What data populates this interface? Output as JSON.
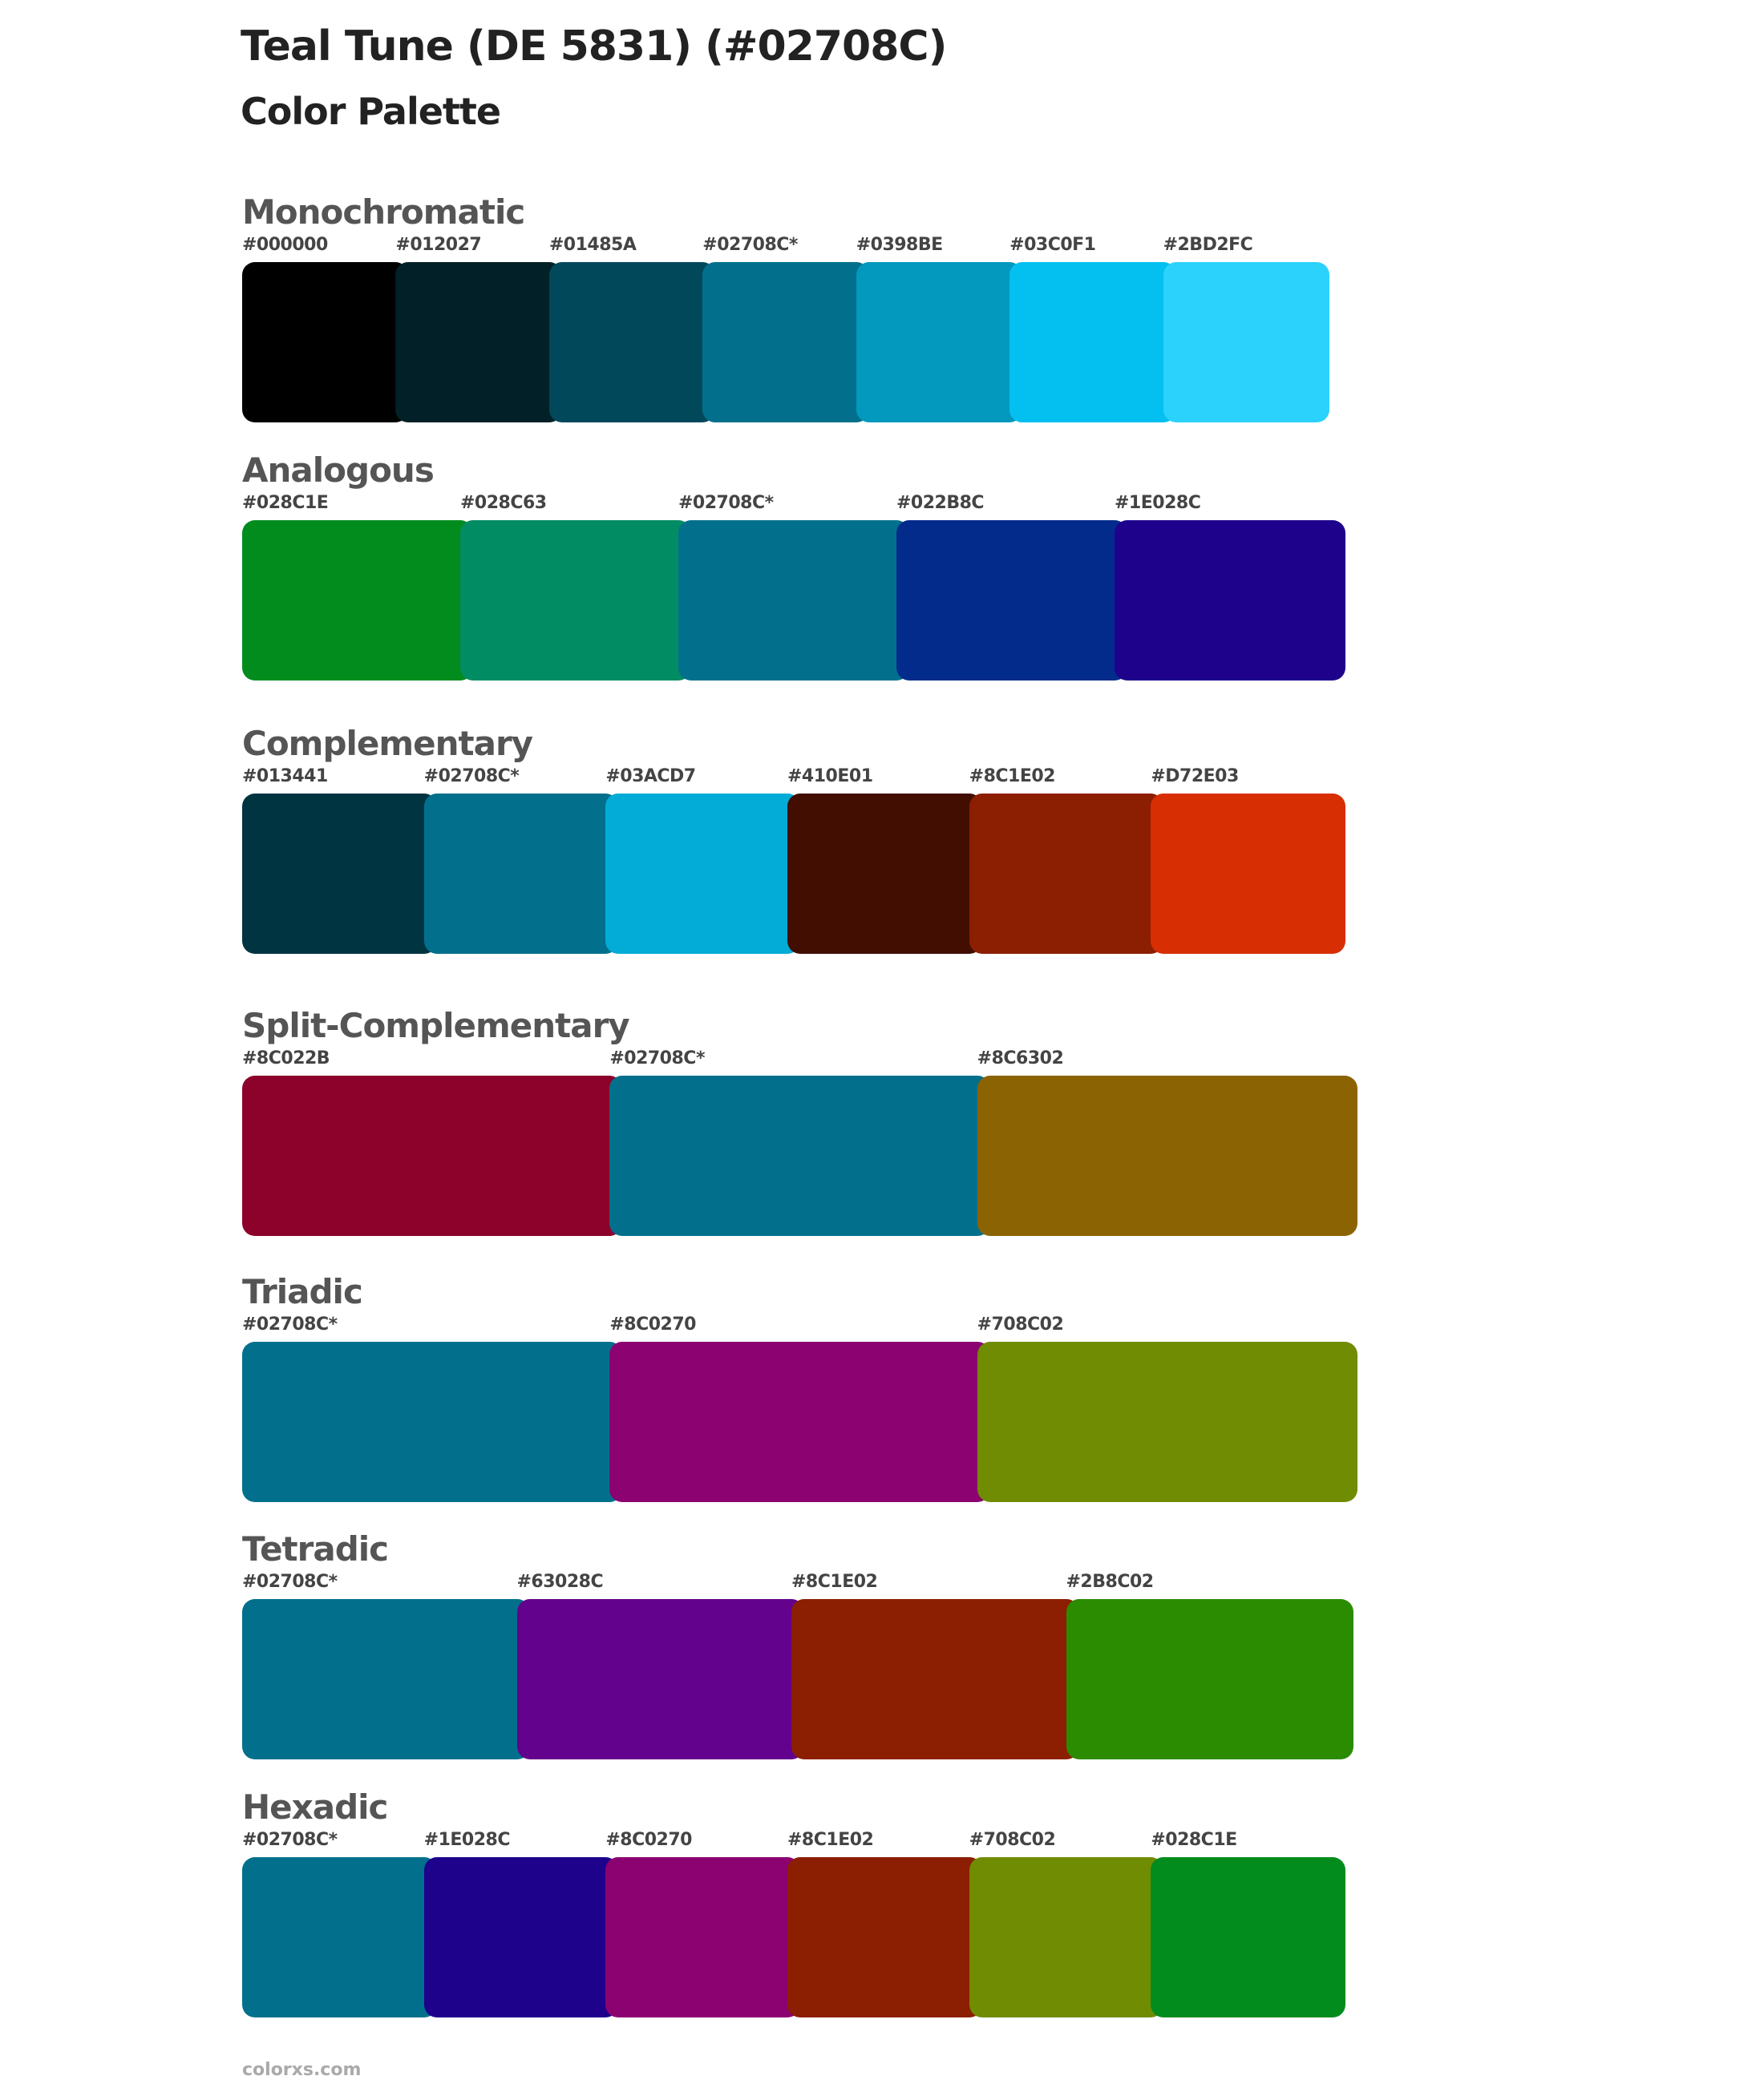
{
  "header": {
    "title": "Teal Tune (DE 5831) (#02708C)",
    "subtitle": "Color Palette"
  },
  "sections": [
    {
      "name": "Monochromatic",
      "colors": [
        {
          "label": "#000000",
          "hex": "#000000"
        },
        {
          "label": "#012027",
          "hex": "#012027"
        },
        {
          "label": "#01485A",
          "hex": "#01485A"
        },
        {
          "label": "#02708C*",
          "hex": "#02708C"
        },
        {
          "label": "#0398BE",
          "hex": "#0398BE"
        },
        {
          "label": "#03C0F1",
          "hex": "#03C0F1"
        },
        {
          "label": "#2BD2FC",
          "hex": "#2BD2FC"
        }
      ]
    },
    {
      "name": "Analogous",
      "colors": [
        {
          "label": "#028C1E",
          "hex": "#028C1E"
        },
        {
          "label": "#028C63",
          "hex": "#028C63"
        },
        {
          "label": "#02708C*",
          "hex": "#02708C"
        },
        {
          "label": "#022B8C",
          "hex": "#022B8C"
        },
        {
          "label": "#1E028C",
          "hex": "#1E028C"
        }
      ]
    },
    {
      "name": "Complementary",
      "colors": [
        {
          "label": "#013441",
          "hex": "#013441"
        },
        {
          "label": "#02708C*",
          "hex": "#02708C"
        },
        {
          "label": "#03ACD7",
          "hex": "#03ACD7"
        },
        {
          "label": "#410E01",
          "hex": "#410E01"
        },
        {
          "label": "#8C1E02",
          "hex": "#8C1E02"
        },
        {
          "label": "#D72E03",
          "hex": "#D72E03"
        }
      ]
    },
    {
      "name": "Split-Complementary",
      "colors": [
        {
          "label": "#8C022B",
          "hex": "#8C022B"
        },
        {
          "label": "#02708C*",
          "hex": "#02708C"
        },
        {
          "label": "#8C6302",
          "hex": "#8C6302"
        }
      ]
    },
    {
      "name": "Triadic",
      "colors": [
        {
          "label": "#02708C*",
          "hex": "#02708C"
        },
        {
          "label": "#8C0270",
          "hex": "#8C0270"
        },
        {
          "label": "#708C02",
          "hex": "#708C02"
        }
      ]
    },
    {
      "name": "Tetradic",
      "colors": [
        {
          "label": "#02708C*",
          "hex": "#02708C"
        },
        {
          "label": "#63028C",
          "hex": "#63028C"
        },
        {
          "label": "#8C1E02",
          "hex": "#8C1E02"
        },
        {
          "label": "#2B8C02",
          "hex": "#2B8C02"
        }
      ]
    },
    {
      "name": "Hexadic",
      "colors": [
        {
          "label": "#02708C*",
          "hex": "#02708C"
        },
        {
          "label": "#1E028C",
          "hex": "#1E028C"
        },
        {
          "label": "#8C0270",
          "hex": "#8C0270"
        },
        {
          "label": "#8C1E02",
          "hex": "#8C1E02"
        },
        {
          "label": "#708C02",
          "hex": "#708C02"
        },
        {
          "label": "#028C1E",
          "hex": "#028C1E"
        }
      ]
    }
  ],
  "footer": {
    "text": "colorxs.com"
  }
}
